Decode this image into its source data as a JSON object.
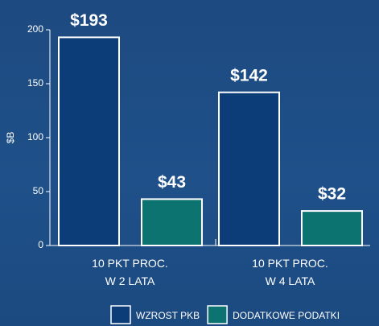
{
  "chart_data": {
    "type": "bar",
    "categories": [
      "10 PKT PROC.\nW 2 LATA",
      "10 PKT PROC.\nW 4 LATA"
    ],
    "series": [
      {
        "name": "WZROST PKB",
        "color": "#0c3d78",
        "values": [
          193,
          142
        ],
        "value_labels": [
          "$193",
          "$142"
        ]
      },
      {
        "name": "DODATKOWE PODATKI",
        "color": "#0d7370",
        "values": [
          43,
          32
        ],
        "value_labels": [
          "$43",
          "$32"
        ]
      }
    ],
    "ylabel": "$B",
    "ylim": [
      0,
      200
    ],
    "yticks": [
      0,
      50,
      100,
      150,
      200
    ]
  }
}
